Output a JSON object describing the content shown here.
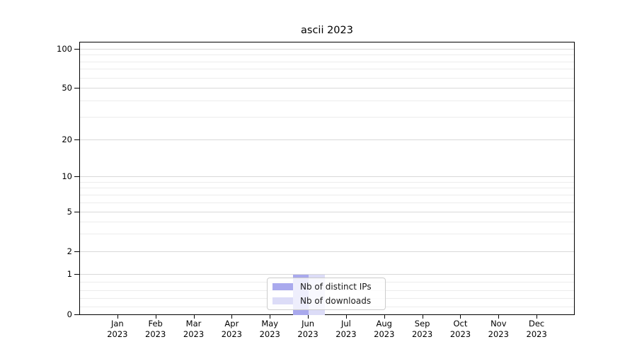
{
  "window": {
    "background": "#ffffff"
  },
  "chart_data": {
    "type": "bar",
    "title": "ascii 2023",
    "categories": [
      "Jan",
      "Feb",
      "Mar",
      "Apr",
      "May",
      "Jun",
      "Jul",
      "Aug",
      "Sep",
      "Oct",
      "Nov",
      "Dec"
    ],
    "x_year": "2023",
    "series": [
      {
        "name": "Nb of distinct IPs",
        "color": "#a9a9ed",
        "values": [
          0,
          0,
          0,
          0,
          0,
          1,
          0,
          0,
          0,
          0,
          0,
          0
        ]
      },
      {
        "name": "Nb of downloads",
        "color": "#dcdcf7",
        "values": [
          0,
          0,
          0,
          0,
          0,
          1,
          0,
          0,
          0,
          0,
          0,
          0
        ]
      }
    ],
    "y_ticks": [
      0,
      1,
      2,
      5,
      10,
      20,
      50,
      100
    ],
    "y_scale": "symlog",
    "ylim": [
      0,
      115
    ],
    "xlabel": "",
    "ylabel": "",
    "grid": true,
    "legend_position": "lower center"
  },
  "colors": {
    "bar_distinct_ips": "#a9a9ed",
    "bar_downloads": "#dcdcf7",
    "major_grid": "#d9d9d9",
    "minor_grid": "#ececec",
    "spine": "#000000",
    "legend_border": "#cccccc",
    "text": "#1a1a1a"
  }
}
